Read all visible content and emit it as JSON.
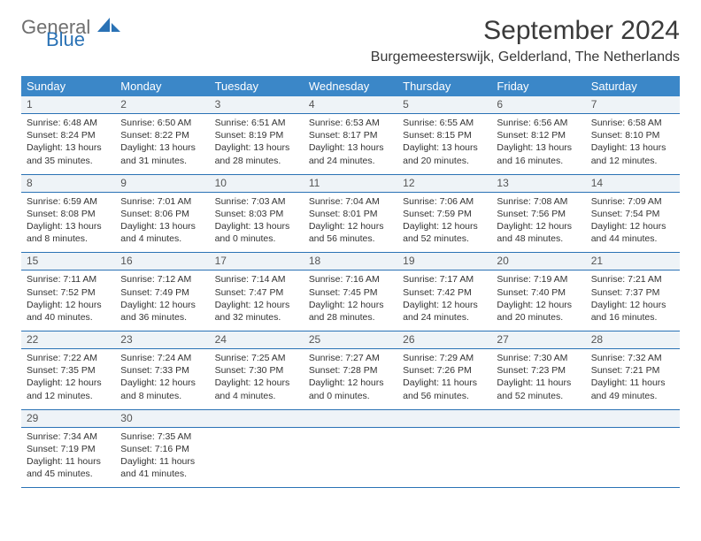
{
  "brand": {
    "part1": "General",
    "part2": "Blue"
  },
  "title": "September 2024",
  "location": "Burgemeesterswijk, Gelderland, The Netherlands",
  "colors": {
    "header_bg": "#3b87c8",
    "header_text": "#ffffff",
    "rule": "#2a72b5",
    "daynum_bg": "#eef3f7",
    "body_text": "#333333",
    "brand_gray": "#6f6f6f",
    "brand_blue": "#2a72b5"
  },
  "day_labels": [
    "Sunday",
    "Monday",
    "Tuesday",
    "Wednesday",
    "Thursday",
    "Friday",
    "Saturday"
  ],
  "weeks": [
    [
      {
        "n": "1",
        "sr": "Sunrise: 6:48 AM",
        "ss": "Sunset: 8:24 PM",
        "dl": "Daylight: 13 hours and 35 minutes."
      },
      {
        "n": "2",
        "sr": "Sunrise: 6:50 AM",
        "ss": "Sunset: 8:22 PM",
        "dl": "Daylight: 13 hours and 31 minutes."
      },
      {
        "n": "3",
        "sr": "Sunrise: 6:51 AM",
        "ss": "Sunset: 8:19 PM",
        "dl": "Daylight: 13 hours and 28 minutes."
      },
      {
        "n": "4",
        "sr": "Sunrise: 6:53 AM",
        "ss": "Sunset: 8:17 PM",
        "dl": "Daylight: 13 hours and 24 minutes."
      },
      {
        "n": "5",
        "sr": "Sunrise: 6:55 AM",
        "ss": "Sunset: 8:15 PM",
        "dl": "Daylight: 13 hours and 20 minutes."
      },
      {
        "n": "6",
        "sr": "Sunrise: 6:56 AM",
        "ss": "Sunset: 8:12 PM",
        "dl": "Daylight: 13 hours and 16 minutes."
      },
      {
        "n": "7",
        "sr": "Sunrise: 6:58 AM",
        "ss": "Sunset: 8:10 PM",
        "dl": "Daylight: 13 hours and 12 minutes."
      }
    ],
    [
      {
        "n": "8",
        "sr": "Sunrise: 6:59 AM",
        "ss": "Sunset: 8:08 PM",
        "dl": "Daylight: 13 hours and 8 minutes."
      },
      {
        "n": "9",
        "sr": "Sunrise: 7:01 AM",
        "ss": "Sunset: 8:06 PM",
        "dl": "Daylight: 13 hours and 4 minutes."
      },
      {
        "n": "10",
        "sr": "Sunrise: 7:03 AM",
        "ss": "Sunset: 8:03 PM",
        "dl": "Daylight: 13 hours and 0 minutes."
      },
      {
        "n": "11",
        "sr": "Sunrise: 7:04 AM",
        "ss": "Sunset: 8:01 PM",
        "dl": "Daylight: 12 hours and 56 minutes."
      },
      {
        "n": "12",
        "sr": "Sunrise: 7:06 AM",
        "ss": "Sunset: 7:59 PM",
        "dl": "Daylight: 12 hours and 52 minutes."
      },
      {
        "n": "13",
        "sr": "Sunrise: 7:08 AM",
        "ss": "Sunset: 7:56 PM",
        "dl": "Daylight: 12 hours and 48 minutes."
      },
      {
        "n": "14",
        "sr": "Sunrise: 7:09 AM",
        "ss": "Sunset: 7:54 PM",
        "dl": "Daylight: 12 hours and 44 minutes."
      }
    ],
    [
      {
        "n": "15",
        "sr": "Sunrise: 7:11 AM",
        "ss": "Sunset: 7:52 PM",
        "dl": "Daylight: 12 hours and 40 minutes."
      },
      {
        "n": "16",
        "sr": "Sunrise: 7:12 AM",
        "ss": "Sunset: 7:49 PM",
        "dl": "Daylight: 12 hours and 36 minutes."
      },
      {
        "n": "17",
        "sr": "Sunrise: 7:14 AM",
        "ss": "Sunset: 7:47 PM",
        "dl": "Daylight: 12 hours and 32 minutes."
      },
      {
        "n": "18",
        "sr": "Sunrise: 7:16 AM",
        "ss": "Sunset: 7:45 PM",
        "dl": "Daylight: 12 hours and 28 minutes."
      },
      {
        "n": "19",
        "sr": "Sunrise: 7:17 AM",
        "ss": "Sunset: 7:42 PM",
        "dl": "Daylight: 12 hours and 24 minutes."
      },
      {
        "n": "20",
        "sr": "Sunrise: 7:19 AM",
        "ss": "Sunset: 7:40 PM",
        "dl": "Daylight: 12 hours and 20 minutes."
      },
      {
        "n": "21",
        "sr": "Sunrise: 7:21 AM",
        "ss": "Sunset: 7:37 PM",
        "dl": "Daylight: 12 hours and 16 minutes."
      }
    ],
    [
      {
        "n": "22",
        "sr": "Sunrise: 7:22 AM",
        "ss": "Sunset: 7:35 PM",
        "dl": "Daylight: 12 hours and 12 minutes."
      },
      {
        "n": "23",
        "sr": "Sunrise: 7:24 AM",
        "ss": "Sunset: 7:33 PM",
        "dl": "Daylight: 12 hours and 8 minutes."
      },
      {
        "n": "24",
        "sr": "Sunrise: 7:25 AM",
        "ss": "Sunset: 7:30 PM",
        "dl": "Daylight: 12 hours and 4 minutes."
      },
      {
        "n": "25",
        "sr": "Sunrise: 7:27 AM",
        "ss": "Sunset: 7:28 PM",
        "dl": "Daylight: 12 hours and 0 minutes."
      },
      {
        "n": "26",
        "sr": "Sunrise: 7:29 AM",
        "ss": "Sunset: 7:26 PM",
        "dl": "Daylight: 11 hours and 56 minutes."
      },
      {
        "n": "27",
        "sr": "Sunrise: 7:30 AM",
        "ss": "Sunset: 7:23 PM",
        "dl": "Daylight: 11 hours and 52 minutes."
      },
      {
        "n": "28",
        "sr": "Sunrise: 7:32 AM",
        "ss": "Sunset: 7:21 PM",
        "dl": "Daylight: 11 hours and 49 minutes."
      }
    ],
    [
      {
        "n": "29",
        "sr": "Sunrise: 7:34 AM",
        "ss": "Sunset: 7:19 PM",
        "dl": "Daylight: 11 hours and 45 minutes."
      },
      {
        "n": "30",
        "sr": "Sunrise: 7:35 AM",
        "ss": "Sunset: 7:16 PM",
        "dl": "Daylight: 11 hours and 41 minutes."
      },
      {
        "n": "",
        "sr": "",
        "ss": "",
        "dl": ""
      },
      {
        "n": "",
        "sr": "",
        "ss": "",
        "dl": ""
      },
      {
        "n": "",
        "sr": "",
        "ss": "",
        "dl": ""
      },
      {
        "n": "",
        "sr": "",
        "ss": "",
        "dl": ""
      },
      {
        "n": "",
        "sr": "",
        "ss": "",
        "dl": ""
      }
    ]
  ]
}
